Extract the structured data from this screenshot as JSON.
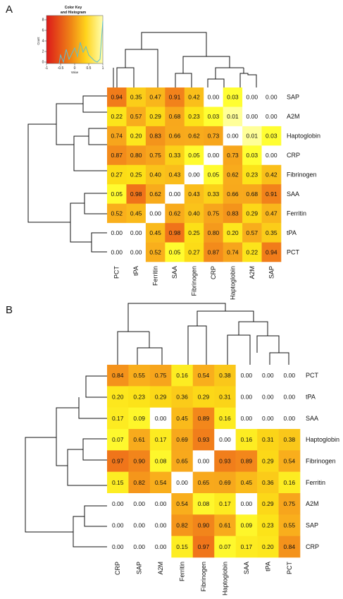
{
  "panel_a_label": "A",
  "panel_b_label": "B",
  "color_key": {
    "title_line1": "Color Key",
    "title_line2": "and Histogram",
    "x_label": "Value",
    "y_label": "Count",
    "ticks": [
      "-1",
      "-0.5",
      "0",
      "0.5",
      "1"
    ],
    "y_ticks": [
      "0",
      "2",
      "4",
      "6",
      "8"
    ],
    "colors": [
      "#dc1a1a",
      "#f08a16",
      "#ffd31c",
      "#ffffb0"
    ]
  },
  "chart_data": [
    {
      "type": "heatmap",
      "panel": "A",
      "rows": [
        "SAP",
        "A2M",
        "Haptoglobin",
        "CRP",
        "Fibrinogen",
        "SAA",
        "Ferritin",
        "tPA",
        "PCT"
      ],
      "columns": [
        "PCT",
        "tPA",
        "Ferritin",
        "SAA",
        "Fibrinogen",
        "CRP",
        "Haptoglobin",
        "A2M",
        "SAP"
      ],
      "values": [
        [
          0.94,
          0.35,
          0.47,
          0.91,
          0.42,
          0.0,
          0.03,
          0.0,
          0.0
        ],
        [
          0.22,
          0.57,
          0.29,
          0.68,
          0.23,
          0.03,
          0.01,
          0.0,
          0.0
        ],
        [
          0.74,
          0.2,
          0.83,
          0.66,
          0.62,
          0.73,
          0.0,
          0.01,
          0.03
        ],
        [
          0.87,
          0.8,
          0.75,
          0.33,
          0.05,
          0.0,
          0.73,
          0.03,
          0.0
        ],
        [
          0.27,
          0.25,
          0.4,
          0.43,
          0.0,
          0.05,
          0.62,
          0.23,
          0.42
        ],
        [
          0.05,
          0.98,
          0.62,
          0.0,
          0.43,
          0.33,
          0.66,
          0.68,
          0.91
        ],
        [
          0.52,
          0.45,
          0.0,
          0.62,
          0.4,
          0.75,
          0.83,
          0.29,
          0.47
        ],
        [
          0.0,
          0.0,
          0.45,
          0.98,
          0.25,
          0.8,
          0.2,
          0.57,
          0.35
        ],
        [
          0.0,
          0.0,
          0.52,
          0.05,
          0.27,
          0.87,
          0.74,
          0.22,
          0.94
        ]
      ]
    },
    {
      "type": "heatmap",
      "panel": "B",
      "rows": [
        "PCT",
        "tPA",
        "SAA",
        "Haptoglobin",
        "Fibrinogen",
        "Ferritin",
        "A2M",
        "SAP",
        "CRP"
      ],
      "columns": [
        "CRP",
        "SAP",
        "A2M",
        "Ferritin",
        "Fibrinogen",
        "Haptoglobin",
        "SAA",
        "tPA",
        "PCT"
      ],
      "values": [
        [
          0.84,
          0.55,
          0.75,
          0.16,
          0.54,
          0.38,
          0.0,
          0.0,
          0.0
        ],
        [
          0.2,
          0.23,
          0.29,
          0.36,
          0.29,
          0.31,
          0.0,
          0.0,
          0.0
        ],
        [
          0.17,
          0.09,
          0.0,
          0.45,
          0.89,
          0.16,
          0.0,
          0.0,
          0.0
        ],
        [
          0.07,
          0.61,
          0.17,
          0.69,
          0.93,
          0.0,
          0.16,
          0.31,
          0.38
        ],
        [
          0.97,
          0.9,
          0.08,
          0.65,
          0.0,
          0.93,
          0.89,
          0.29,
          0.54
        ],
        [
          0.15,
          0.82,
          0.54,
          0.0,
          0.65,
          0.69,
          0.45,
          0.36,
          0.16
        ],
        [
          0.0,
          0.0,
          0.0,
          0.54,
          0.08,
          0.17,
          0.0,
          0.29,
          0.75
        ],
        [
          0.0,
          0.0,
          0.0,
          0.82,
          0.9,
          0.61,
          0.09,
          0.23,
          0.55
        ],
        [
          0.0,
          0.0,
          0.0,
          0.15,
          0.97,
          0.07,
          0.17,
          0.2,
          0.84
        ]
      ]
    }
  ]
}
